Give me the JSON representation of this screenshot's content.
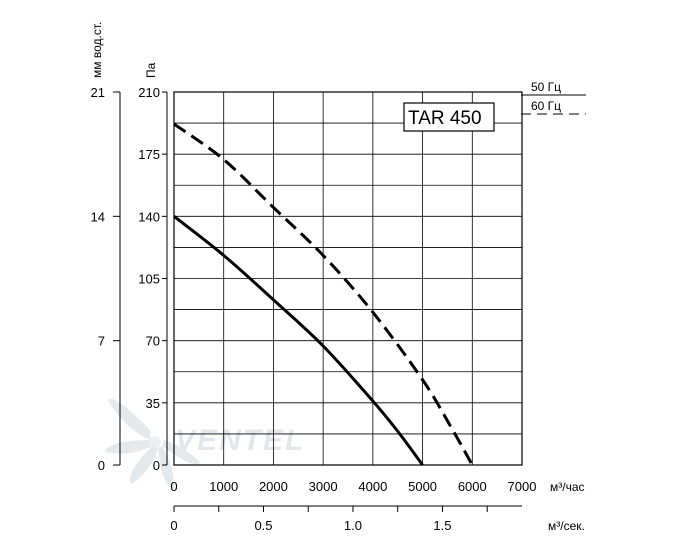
{
  "chart_data": {
    "type": "line",
    "title": "TAR 450",
    "x_axis": {
      "label": "м³/час",
      "ticks": [
        "0",
        "1000",
        "2000",
        "3000",
        "4000",
        "5000",
        "6000",
        "7000"
      ],
      "range": [
        0,
        7000
      ]
    },
    "x2_axis": {
      "label": "м³/сек.",
      "ticks": [
        "0",
        "0.5",
        "1.0",
        "1.5"
      ],
      "tick_values": [
        0,
        0.5,
        1.0,
        1.5
      ]
    },
    "y_axis": {
      "label": "Па",
      "ticks": [
        "0",
        "35",
        "70",
        "105",
        "140",
        "175",
        "210"
      ],
      "range": [
        0,
        210
      ]
    },
    "y2_axis": {
      "label": "мм вод.ст.",
      "ticks": [
        "0",
        "7",
        "14",
        "21"
      ]
    },
    "grid": true,
    "legend_position": "top-right, outside plot",
    "series": [
      {
        "name": "50 Гц",
        "style": "solid",
        "points": [
          [
            0,
            140
          ],
          [
            1000,
            118
          ],
          [
            2000,
            93
          ],
          [
            3000,
            67
          ],
          [
            4000,
            36
          ],
          [
            4500,
            19
          ],
          [
            5000,
            0
          ]
        ]
      },
      {
        "name": "60 Гц",
        "style": "dashed",
        "points": [
          [
            0,
            192
          ],
          [
            1000,
            172
          ],
          [
            2000,
            145
          ],
          [
            3000,
            118
          ],
          [
            4000,
            86
          ],
          [
            5000,
            48
          ],
          [
            5600,
            20
          ],
          [
            6000,
            0
          ]
        ]
      }
    ],
    "watermark": "VENTEL"
  }
}
